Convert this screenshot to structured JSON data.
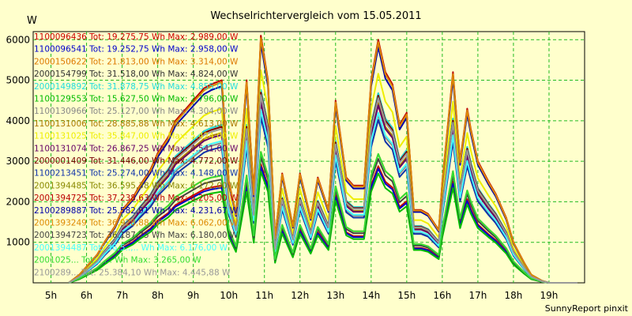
{
  "chart_data": {
    "type": "line",
    "title": "Wechselrichtervergleich vom 15.05.2011",
    "ylabel": "W",
    "xlabel": "",
    "ylim": [
      0,
      6200
    ],
    "xlim": [
      4.5,
      20.0
    ],
    "yticks": [
      1000,
      2000,
      3000,
      4000,
      5000,
      6000
    ],
    "xticks": [
      "5h",
      "6h",
      "7h",
      "8h",
      "9h",
      "10h",
      "11h",
      "12h",
      "13h",
      "14h",
      "15h",
      "16h",
      "17h",
      "18h",
      "19h"
    ],
    "grid": true,
    "legend_position": "top-left",
    "footer": "SunnyReport pinxit",
    "series": [
      {
        "name": "1100096436 Tot: 19.275,75 Wh Max: 2.989,00 W",
        "color": "#cc0000"
      },
      {
        "name": "1100096541 Tot: 19.252,75 Wh Max: 2.958,00 W",
        "color": "#0000cc"
      },
      {
        "name": "2000150622 Tot: 21.813,00 Wh Max: 3.314,00 W",
        "color": "#dd7700"
      },
      {
        "name": "2000154799 Tot: 31.518,00 Wh Max: 4.824,00 W",
        "color": "#333333"
      },
      {
        "name": "2000149892 Tot: 31.878,75 Wh Max: 4.855,00 W",
        "color": "#22dddd"
      },
      {
        "name": "1100129553 Tot: 15.627,50 Wh Max: 2.796,00 W",
        "color": "#00bb00"
      },
      {
        "name": "1100130966 Tot: 25.127,00 Wh Max: 4.304,00 W",
        "color": "#888888"
      },
      {
        "name": "1100131006 Tot: 28.885,88 Wh Max: 4.613,00 W",
        "color": "#aa7700"
      },
      {
        "name": "1100131025 Tot: 35.847,00 Wh Max: 5.424,00 W",
        "color": "#eeee00"
      },
      {
        "name": "1100131074 Tot: 26.867,25 Wh Max: 4.541,00 W",
        "color": "#660066"
      },
      {
        "name": "2000001409 Tot: 31.446,00 Wh Max: 4.772,00 W",
        "color": "#770000"
      },
      {
        "name": "1100213451 Tot: 25.274,00 Wh Max: 4.148,00 W",
        "color": "#1133aa"
      },
      {
        "name": "2001394485 Tot: 36.595,38 Wh Max: 6.172,00 W",
        "color": "#888800"
      },
      {
        "name": "2001394725 Tot: 37.238,63 Wh Max: 6.205,00 W",
        "color": "#bb0000"
      },
      {
        "name": "2100289887 Tot: 25.582,91 Wh Max: 4.231,67 W",
        "color": "#0000aa"
      },
      {
        "name": "2001393249 Tot: 36.928,88 Wh Max: 6.062,00 W",
        "color": "#dd8800"
      },
      {
        "name": "2001394723 Tot: 36.187,75 Wh Max: 6.180,00 W",
        "color": "#444444"
      },
      {
        "name": "2001394487 Tot: 36.5..,.. Wh Max: 6.176,00 W",
        "color": "#44ffff"
      },
      {
        "name": "2001025... Tot: ..... Wh Max: 3.265,00 W",
        "color": "#33dd33"
      },
      {
        "name": "2100289... Tot: 25.384,10 Wh Max: 4.445,88 W",
        "color": "#999999"
      }
    ],
    "x": [
      5.5,
      5.8,
      6.0,
      6.3,
      6.5,
      6.8,
      7.0,
      7.3,
      7.5,
      7.8,
      8.0,
      8.3,
      8.5,
      8.8,
      9.0,
      9.3,
      9.5,
      9.8,
      10.0,
      10.2,
      10.5,
      10.7,
      10.9,
      11.1,
      11.3,
      11.5,
      11.8,
      12.0,
      12.3,
      12.5,
      12.8,
      13.0,
      13.3,
      13.5,
      13.8,
      14.0,
      14.2,
      14.4,
      14.6,
      14.8,
      15.0,
      15.2,
      15.4,
      15.6,
      15.9,
      16.0,
      16.3,
      16.5,
      16.7,
      16.8,
      17.0,
      17.3,
      17.5,
      17.8,
      18.0,
      18.3,
      18.5,
      18.8,
      19.0,
      19.2,
      19.5,
      19.8
    ],
    "base": [
      0,
      200,
      400,
      700,
      1000,
      1400,
      1800,
      2100,
      2400,
      2800,
      3200,
      3600,
      4000,
      4300,
      4500,
      4800,
      4900,
      5000,
      2500,
      1700,
      5000,
      2200,
      6100,
      5000,
      1100,
      2700,
      1400,
      2700,
      1600,
      2600,
      1800,
      4500,
      2600,
      2400,
      2400,
      5000,
      6000,
      5200,
      4900,
      3900,
      4200,
      1800,
      1800,
      1700,
      1300,
      2500,
      5200,
      3000,
      4300,
      3800,
      3000,
      2500,
      2200,
      1600,
      1000,
      500,
      200,
      50,
      0,
      0,
      0,
      0
    ],
    "factors": [
      0.48,
      0.47,
      0.53,
      0.78,
      0.78,
      0.45,
      0.69,
      0.74,
      0.86,
      0.73,
      0.77,
      0.67,
      0.99,
      1.0,
      0.97,
      0.99,
      0.51,
      0.7,
      0.53,
      0.76
    ]
  }
}
